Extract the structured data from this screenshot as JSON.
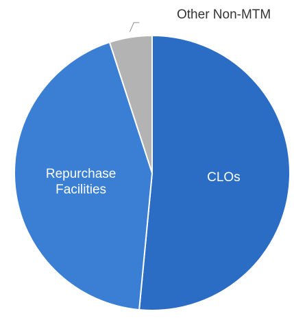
{
  "chart_data": {
    "type": "pie",
    "title": "",
    "slices": [
      {
        "name": "CLOs",
        "value": 51.5,
        "color": "#2b6cc4",
        "label_lines": [
          "CLOs"
        ],
        "label_position": "inside"
      },
      {
        "name": "Repurchase Facilities",
        "value": 43.5,
        "color": "#3a7fd4",
        "label_lines": [
          "Repurchase",
          "Facilities"
        ],
        "label_position": "inside"
      },
      {
        "name": "Other Non-MTM",
        "value": 5.0,
        "color": "#b3b3b3",
        "label_lines": [
          "Other Non-MTM"
        ],
        "label_position": "outside"
      }
    ],
    "start_angle_deg": 0,
    "direction": "clockwise",
    "legend": "none"
  }
}
